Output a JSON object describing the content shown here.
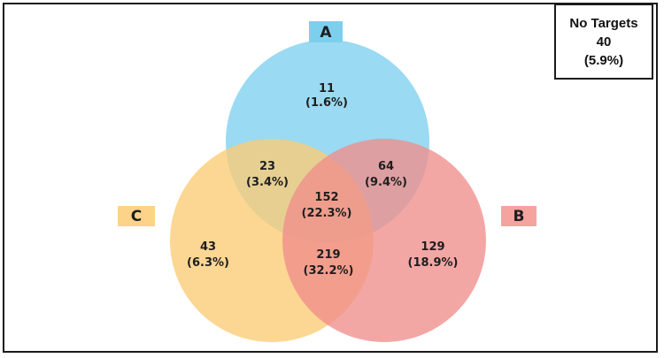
{
  "colors": {
    "circle_a": "#7dcfee",
    "circle_b": "#f08e8c",
    "circle_c": "#fbcc74",
    "tag_a": "#7dcfee",
    "tag_b": "#f4a39f",
    "tag_c": "#fcd389"
  },
  "sets": {
    "a": "A",
    "b": "B",
    "c": "C"
  },
  "regions": {
    "a_only": {
      "count": "11",
      "pct": "(1.6%)"
    },
    "a_c": {
      "count": "23",
      "pct": "(3.4%)"
    },
    "a_b": {
      "count": "64",
      "pct": "(9.4%)"
    },
    "a_b_c": {
      "count": "152",
      "pct": "(22.3%)"
    },
    "c_only": {
      "count": "43",
      "pct": "(6.3%)"
    },
    "b_c": {
      "count": "219",
      "pct": "(32.2%)"
    },
    "b_only": {
      "count": "129",
      "pct": "(18.9%)"
    }
  },
  "no_targets": {
    "label": "No Targets",
    "count": "40",
    "pct": "(5.9%)"
  }
}
